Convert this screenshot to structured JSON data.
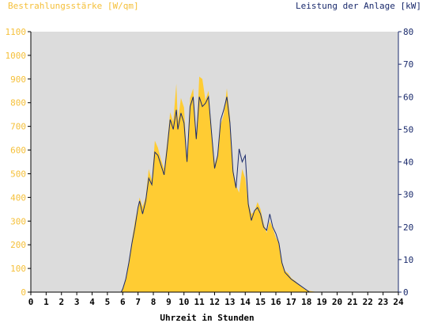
{
  "chart_data": {
    "type": "area",
    "left_axis_title": "Bestrahlungsstärke [W/qm]",
    "right_axis_title": "Leistung der Anlage [kW]",
    "xlabel": "Uhrzeit in Stunden",
    "xlim": [
      0,
      24
    ],
    "x_ticks": [
      "0",
      "1",
      "2",
      "3",
      "4",
      "5",
      "6",
      "7",
      "8",
      "9",
      "10",
      "11",
      "12",
      "13",
      "14",
      "15",
      "16",
      "17",
      "18",
      "19",
      "20",
      "21",
      "22",
      "23",
      "24"
    ],
    "left_ylim": [
      0,
      1100
    ],
    "left_ticks": [
      "0",
      "100",
      "200",
      "300",
      "400",
      "500",
      "600",
      "700",
      "800",
      "900",
      "1000",
      "1100"
    ],
    "right_ylim": [
      0,
      80
    ],
    "right_ticks": [
      "0",
      "10",
      "20",
      "30",
      "40",
      "50",
      "60",
      "70",
      "80"
    ],
    "grid": false,
    "colors": {
      "irradiance": "#ffcc33",
      "power": "#1a2a6c",
      "plot_background": "#dcdcdc",
      "left_text": "#f5c03a",
      "right_text": "#1a2a6c"
    },
    "series": [
      {
        "axis": "left",
        "style": "area",
        "x": [
          0,
          5.9,
          6.0,
          6.2,
          6.4,
          6.6,
          6.8,
          7.0,
          7.1,
          7.3,
          7.5,
          7.7,
          7.9,
          8.1,
          8.3,
          8.5,
          8.7,
          8.9,
          9.1,
          9.3,
          9.5,
          9.6,
          9.8,
          10.0,
          10.2,
          10.4,
          10.6,
          10.8,
          11.0,
          11.2,
          11.4,
          11.6,
          11.8,
          12.0,
          12.2,
          12.4,
          12.6,
          12.8,
          13.0,
          13.2,
          13.4,
          13.6,
          13.8,
          14.0,
          14.2,
          14.4,
          14.6,
          14.8,
          15.0,
          15.2,
          15.4,
          15.6,
          15.8,
          16.0,
          16.2,
          16.4,
          16.6,
          16.8,
          17.0,
          17.3,
          17.6,
          17.9,
          18.2,
          18.5,
          18.8,
          19.0,
          24
        ],
        "values": [
          0,
          0,
          15,
          60,
          130,
          220,
          300,
          360,
          400,
          360,
          400,
          520,
          470,
          640,
          610,
          560,
          520,
          630,
          760,
          720,
          880,
          720,
          820,
          780,
          560,
          820,
          860,
          640,
          910,
          900,
          810,
          850,
          690,
          540,
          580,
          710,
          750,
          860,
          740,
          520,
          450,
          420,
          520,
          480,
          380,
          330,
          340,
          380,
          350,
          290,
          250,
          300,
          270,
          230,
          210,
          130,
          90,
          80,
          60,
          45,
          25,
          12,
          5,
          2,
          0,
          0,
          0
        ]
      },
      {
        "axis": "right",
        "style": "line",
        "x": [
          0,
          5.9,
          6.0,
          6.2,
          6.4,
          6.6,
          6.8,
          7.0,
          7.1,
          7.3,
          7.5,
          7.7,
          7.9,
          8.1,
          8.3,
          8.5,
          8.7,
          8.9,
          9.1,
          9.3,
          9.5,
          9.6,
          9.8,
          10.0,
          10.2,
          10.4,
          10.6,
          10.8,
          11.0,
          11.2,
          11.4,
          11.6,
          11.8,
          12.0,
          12.2,
          12.4,
          12.6,
          12.8,
          13.0,
          13.2,
          13.4,
          13.6,
          13.8,
          14.0,
          14.2,
          14.4,
          14.6,
          14.8,
          15.0,
          15.2,
          15.4,
          15.6,
          15.8,
          16.0,
          16.2,
          16.4,
          16.6,
          16.8,
          17.0,
          17.3,
          17.6,
          17.9,
          18.2,
          18.5,
          18.8,
          19.0,
          24
        ],
        "values": [
          0,
          0,
          1,
          4,
          9,
          15,
          20,
          26,
          28,
          24,
          28,
          35,
          33,
          43,
          42,
          39,
          36,
          44,
          53,
          50,
          56,
          50,
          55,
          52,
          40,
          57,
          60,
          47,
          60,
          57,
          58,
          60,
          49,
          38,
          42,
          53,
          56,
          60,
          52,
          37,
          32,
          44,
          40,
          42,
          27,
          22,
          25,
          26,
          24,
          20,
          19,
          24,
          20,
          18,
          15,
          9,
          6,
          5,
          4,
          3,
          2,
          1,
          0,
          0,
          0,
          0,
          0
        ]
      }
    ]
  }
}
